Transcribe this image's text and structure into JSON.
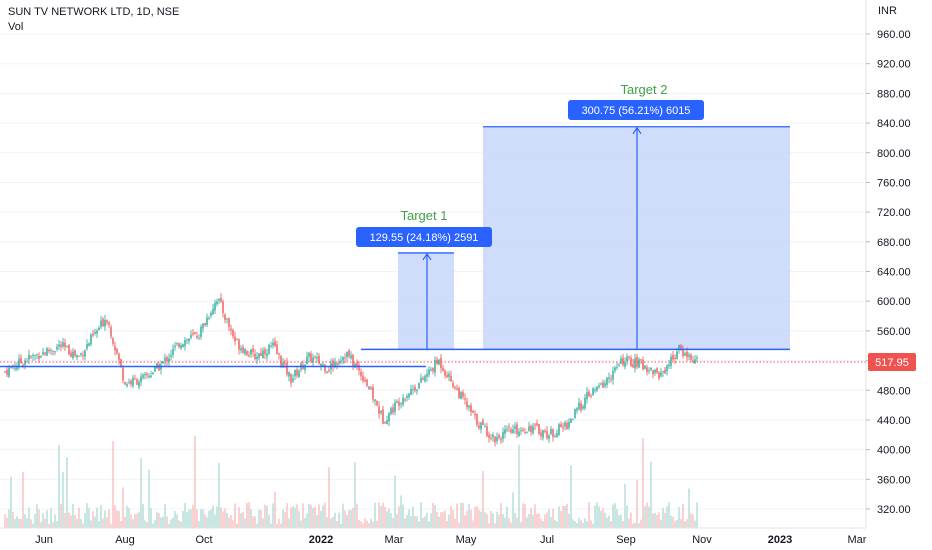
{
  "header": {
    "title": "SUN TV NETWORK LTD, 1D, NSE",
    "volume_label": "Vol"
  },
  "colors": {
    "up": "#26a69a",
    "down": "#ef5350",
    "up_vol": "#a5d6cf",
    "down_vol": "#f5b4b2",
    "line": "#2962ff",
    "box_fill": "#c7d7fa",
    "box_edge": "#2962ff",
    "target_text": "#43a047",
    "label_bg": "#2962ff",
    "price_tag": "#ef5350"
  },
  "chart_data": {
    "type": "candlestick",
    "currency": "INR",
    "y_ticks": [
      "960.00",
      "920.00",
      "880.00",
      "840.00",
      "800.00",
      "760.00",
      "720.00",
      "680.00",
      "640.00",
      "600.00",
      "560.00",
      "520.00",
      "480.00",
      "440.00",
      "400.00",
      "360.00",
      "320.00"
    ],
    "ylim": [
      300,
      990
    ],
    "x_ticks": [
      "Jun",
      "Aug",
      "Oct",
      "2022",
      "Mar",
      "May",
      "Jul",
      "Sep",
      "Nov",
      "2023",
      "Mar"
    ],
    "bold_ticks": [
      "2022",
      "2023"
    ],
    "last_price": "517.95",
    "close_approx": [
      [
        "2021-05-24",
        505
      ],
      [
        "2021-06-07",
        520
      ],
      [
        "2021-06-21",
        530
      ],
      [
        "2021-07-05",
        540
      ],
      [
        "2021-07-19",
        525
      ],
      [
        "2021-08-02",
        560
      ],
      [
        "2021-08-09",
        580
      ],
      [
        "2021-08-23",
        490
      ],
      [
        "2021-09-06",
        495
      ],
      [
        "2021-09-20",
        515
      ],
      [
        "2021-10-04",
        545
      ],
      [
        "2021-10-18",
        555
      ],
      [
        "2021-11-01",
        605
      ],
      [
        "2021-11-15",
        545
      ],
      [
        "2021-11-29",
        525
      ],
      [
        "2021-12-13",
        540
      ],
      [
        "2021-12-27",
        495
      ],
      [
        "2022-01-10",
        525
      ],
      [
        "2022-01-24",
        510
      ],
      [
        "2022-02-07",
        530
      ],
      [
        "2022-02-21",
        495
      ],
      [
        "2022-03-07",
        440
      ],
      [
        "2022-03-21",
        470
      ],
      [
        "2022-04-04",
        490
      ],
      [
        "2022-04-18",
        520
      ],
      [
        "2022-05-02",
        480
      ],
      [
        "2022-05-16",
        440
      ],
      [
        "2022-05-30",
        415
      ],
      [
        "2022-06-13",
        425
      ],
      [
        "2022-06-27",
        430
      ],
      [
        "2022-07-11",
        420
      ],
      [
        "2022-07-25",
        435
      ],
      [
        "2022-08-08",
        470
      ],
      [
        "2022-08-22",
        490
      ],
      [
        "2022-09-05",
        520
      ],
      [
        "2022-09-19",
        515
      ],
      [
        "2022-10-03",
        500
      ],
      [
        "2022-10-17",
        535
      ],
      [
        "2022-10-31",
        518
      ]
    ],
    "lines": [
      {
        "name": "support",
        "value": 512
      },
      {
        "name": "resistance",
        "value": 535
      }
    ],
    "targets": [
      {
        "label": "Target 1",
        "measure": "129.55 (24.18%) 2591",
        "from": 535,
        "to": 665
      },
      {
        "label": "Target 2",
        "measure": "300.75 (56.21%) 6015",
        "from": 535,
        "to": 835
      }
    ]
  }
}
